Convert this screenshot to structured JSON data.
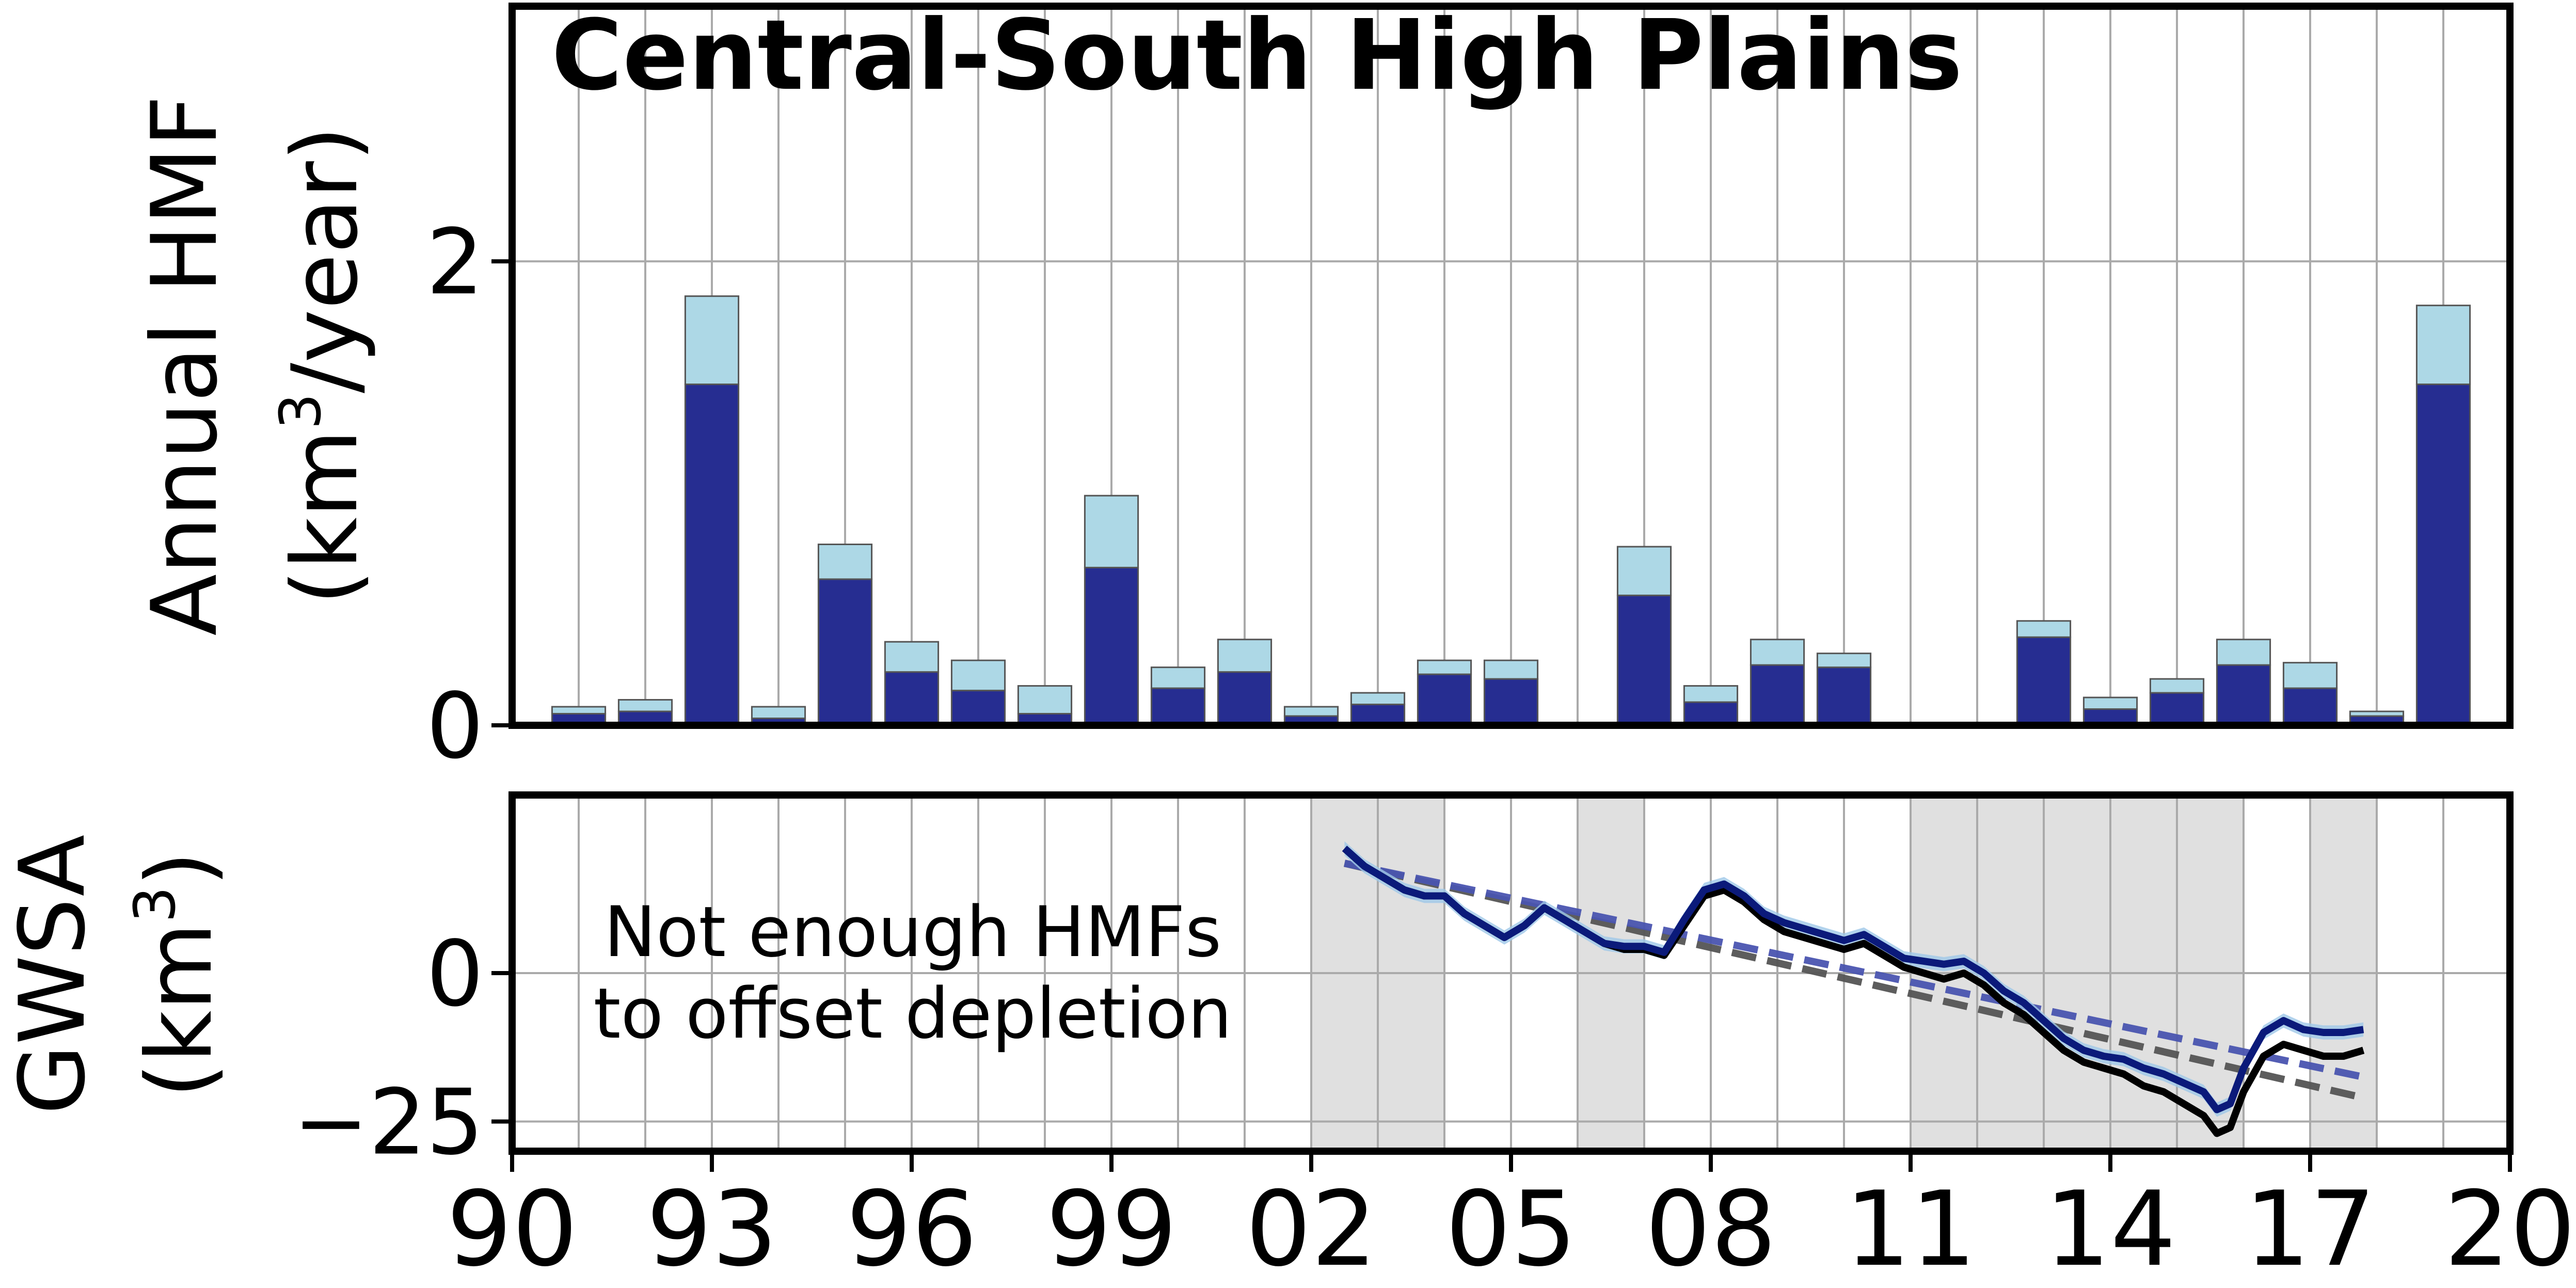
{
  "chart_data": [
    {
      "type": "bar",
      "title": "Central-South High Plains",
      "ylabel_line1": "Annual HMF",
      "ylabel_line2_pre": "(km",
      "ylabel_line2_sup": "3",
      "ylabel_line2_post": "/year)",
      "x": [
        1991,
        1992,
        1993,
        1994,
        1995,
        1996,
        1997,
        1998,
        1999,
        2000,
        2001,
        2002,
        2003,
        2004,
        2005,
        2006,
        2007,
        2008,
        2009,
        2010,
        2011,
        2012,
        2013,
        2014,
        2015,
        2016,
        2017,
        2018,
        2019
      ],
      "xlim": [
        1990,
        2020
      ],
      "ylim": [
        0,
        3.1
      ],
      "yticks": [
        0,
        2
      ],
      "ytick_labels": [
        "0",
        "2"
      ],
      "stacked": true,
      "series": [
        {
          "color": "#262d91",
          "values": [
            0.05,
            0.06,
            1.47,
            0.03,
            0.63,
            0.23,
            0.15,
            0.05,
            0.68,
            0.16,
            0.23,
            0.04,
            0.09,
            0.22,
            0.2,
            0.01,
            0.56,
            0.1,
            0.26,
            0.25,
            0,
            0,
            0.38,
            0.07,
            0.14,
            0.26,
            0.16,
            0.04,
            1.47
          ]
        },
        {
          "color": "#add8e6",
          "values": [
            0.03,
            0.05,
            0.38,
            0.05,
            0.15,
            0.13,
            0.13,
            0.12,
            0.31,
            0.09,
            0.14,
            0.04,
            0.05,
            0.06,
            0.08,
            0,
            0.21,
            0.07,
            0.11,
            0.06,
            0,
            0,
            0.07,
            0.05,
            0.06,
            0.11,
            0.11,
            0.02,
            0.34
          ]
        }
      ],
      "grid": true
    },
    {
      "type": "line",
      "ylabel_line1": "GWSA",
      "ylabel_line2_pre": "(km",
      "ylabel_line2_sup": "3",
      "ylabel_line2_post": ")",
      "xlim": [
        1990,
        2020
      ],
      "ylim": [
        -30,
        30
      ],
      "yticks": [
        0,
        -25
      ],
      "ytick_labels": [
        "0",
        "−25"
      ],
      "xticks": [
        1990,
        1993,
        1996,
        1999,
        2002,
        2005,
        2008,
        2011,
        2014,
        2017,
        2020
      ],
      "xtick_labels": [
        "90",
        "93",
        "96",
        "99",
        "02",
        "05",
        "08",
        "11",
        "14",
        "17",
        "20"
      ],
      "annotation_line1": "Not enough HMFs",
      "annotation_line2": "to offset depletion",
      "shaded_spans": [
        [
          2002,
          2004
        ],
        [
          2006,
          2007
        ],
        [
          2011,
          2016
        ],
        [
          2017,
          2018
        ]
      ],
      "grid": true,
      "series": [
        {
          "color": "#000000",
          "x": [
            2002.5,
            2002.8,
            2003.1,
            2003.4,
            2003.7,
            2004.0,
            2004.3,
            2004.6,
            2004.9,
            2005.2,
            2005.5,
            2005.8,
            2006.1,
            2006.4,
            2006.7,
            2007.0,
            2007.3,
            2007.6,
            2007.9,
            2008.2,
            2008.5,
            2008.8,
            2009.1,
            2009.4,
            2009.7,
            2010.0,
            2010.3,
            2010.6,
            2010.9,
            2011.2,
            2011.5,
            2011.8,
            2012.1,
            2012.4,
            2012.7,
            2013.0,
            2013.3,
            2013.6,
            2013.9,
            2014.2,
            2014.5,
            2014.8,
            2015.1,
            2015.4,
            2015.6,
            2015.8,
            2016.0,
            2016.3,
            2016.6,
            2016.9,
            2017.2,
            2017.5,
            2017.8
          ],
          "y": [
            21,
            18,
            16,
            14,
            13,
            13,
            10,
            8,
            6,
            8,
            11,
            9,
            7,
            5,
            4,
            4,
            3,
            8,
            13,
            14,
            12,
            9,
            7,
            6,
            5,
            4,
            5,
            3,
            1,
            0,
            -1,
            0,
            -2,
            -5,
            -7,
            -10,
            -13,
            -15,
            -16,
            -17,
            -19,
            -20,
            -22,
            -24,
            -27,
            -26,
            -20,
            -14,
            -12,
            -13,
            -14,
            -14,
            -13
          ],
          "trend": [
            [
              2002.5,
              18.5
            ],
            [
              2017.8,
              -21
            ]
          ]
        },
        {
          "color": "#0b1a7a",
          "x": [
            2002.5,
            2002.8,
            2003.1,
            2003.4,
            2003.7,
            2004.0,
            2004.3,
            2004.6,
            2004.9,
            2005.2,
            2005.5,
            2005.8,
            2006.1,
            2006.4,
            2006.7,
            2007.0,
            2007.3,
            2007.6,
            2007.9,
            2008.2,
            2008.5,
            2008.8,
            2009.1,
            2009.4,
            2009.7,
            2010.0,
            2010.3,
            2010.6,
            2010.9,
            2011.2,
            2011.5,
            2011.8,
            2012.1,
            2012.4,
            2012.7,
            2013.0,
            2013.3,
            2013.6,
            2013.9,
            2014.2,
            2014.5,
            2014.8,
            2015.1,
            2015.4,
            2015.6,
            2015.8,
            2016.0,
            2016.3,
            2016.6,
            2016.9,
            2017.2,
            2017.5,
            2017.8
          ],
          "y": [
            21,
            18,
            16,
            14,
            13,
            13,
            10,
            8,
            6,
            8,
            11,
            9,
            7,
            5,
            4.5,
            4.5,
            3.5,
            9,
            14,
            15,
            13,
            10,
            8.5,
            7.5,
            6.5,
            5.5,
            6.5,
            4.5,
            2.5,
            2,
            1.5,
            2,
            0,
            -3,
            -5,
            -8,
            -11,
            -13,
            -14,
            -14.5,
            -16,
            -17,
            -18.5,
            -20,
            -23,
            -22,
            -16,
            -10,
            -8,
            -9.5,
            -10,
            -10,
            -9.5
          ],
          "trend": [
            [
              2002.5,
              18.5
            ],
            [
              2017.8,
              -17.5
            ]
          ]
        }
      ]
    }
  ]
}
